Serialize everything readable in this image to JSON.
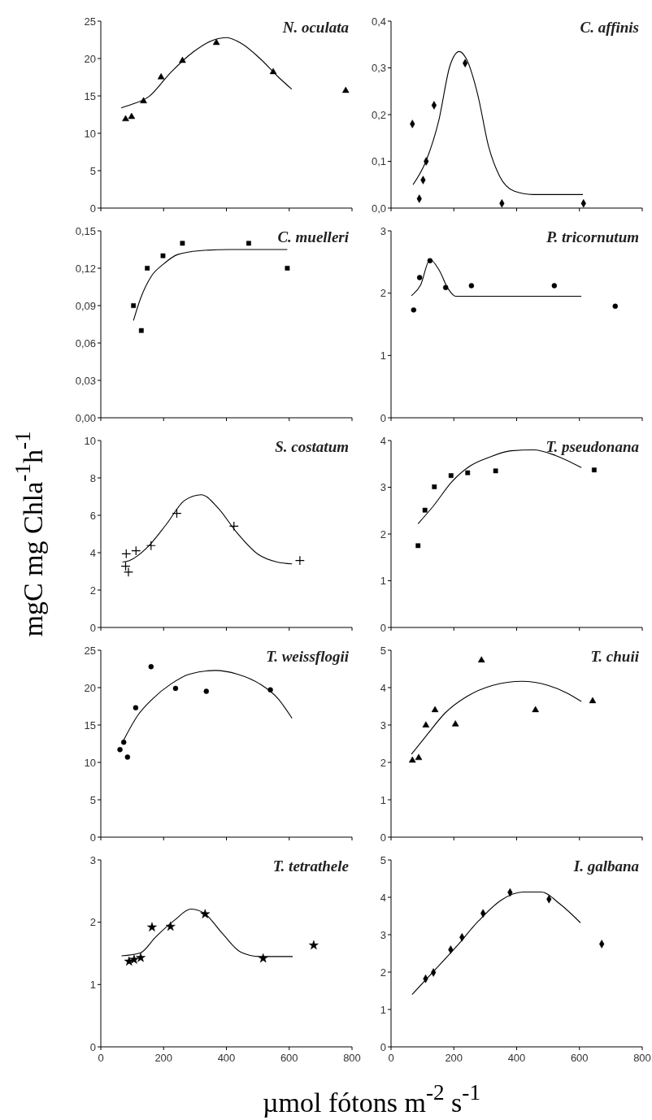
{
  "chart_data": [
    {
      "type": "scatter",
      "title": "N. oculata",
      "xlim": [
        0,
        800
      ],
      "xticks": [
        0,
        200,
        400,
        600,
        800
      ],
      "ylim": [
        0,
        25
      ],
      "yticks": [
        0,
        5,
        10,
        15,
        20,
        25
      ],
      "tick_labels": "y",
      "series": [
        {
          "type": "scatter",
          "marker": "triangle",
          "color": "#000000",
          "x": [
            79,
            98,
            136,
            192,
            260,
            368,
            549,
            780
          ],
          "values": [
            11.9,
            12.2,
            14.3,
            17.5,
            19.7,
            22.1,
            18.2,
            15.7
          ]
        },
        {
          "type": "line",
          "color": "#000000",
          "x": [
            65,
            94,
            153,
            224,
            295,
            354,
            401,
            448,
            507,
            566,
            608
          ],
          "values": [
            13.4,
            13.8,
            14.9,
            18.2,
            20.9,
            22.4,
            22.8,
            22.0,
            20.0,
            17.5,
            15.9
          ]
        }
      ]
    },
    {
      "type": "scatter",
      "title": "C. affinis",
      "xlim": [
        0,
        800
      ],
      "xticks": [
        0,
        200,
        400,
        600,
        800
      ],
      "ylim": [
        0,
        0.4
      ],
      "yticks": [
        {
          "value": 0,
          "label": "0,0"
        },
        {
          "value": 0.1,
          "label": "0,1"
        },
        {
          "value": 0.2,
          "label": "0,2"
        },
        {
          "value": 0.3,
          "label": "0,3"
        },
        {
          "value": 0.4,
          "label": "0,4"
        }
      ],
      "tick_labels": "y",
      "series": [
        {
          "type": "scatter",
          "marker": "diamond",
          "color": "#000000",
          "x": [
            68,
            90,
            102,
            112,
            137,
            236,
            353,
            613
          ],
          "values": [
            0.18,
            0.02,
            0.06,
            0.1,
            0.22,
            0.31,
            0.01,
            0.01
          ]
        },
        {
          "type": "line",
          "color": "#000000",
          "x": [
            70,
            111,
            152,
            187,
            217,
            240,
            276,
            311,
            346,
            393,
            452,
            611
          ],
          "values": [
            0.05,
            0.1,
            0.187,
            0.303,
            0.335,
            0.319,
            0.243,
            0.131,
            0.068,
            0.036,
            0.029,
            0.029
          ]
        }
      ]
    },
    {
      "type": "scatter",
      "title": "C. muelleri",
      "xlim": [
        0,
        800
      ],
      "xticks": [
        0,
        200,
        400,
        600,
        800
      ],
      "ylim": [
        0,
        0.15
      ],
      "yticks": [
        {
          "value": 0,
          "label": "0,00"
        },
        {
          "value": 0.03,
          "label": "0,03"
        },
        {
          "value": 0.06,
          "label": "0,06"
        },
        {
          "value": 0.09,
          "label": "0,09"
        },
        {
          "value": 0.12,
          "label": "0,12"
        },
        {
          "value": 0.15,
          "label": "0,15"
        }
      ],
      "tick_labels": "y",
      "series": [
        {
          "type": "scatter",
          "marker": "square",
          "color": "#000000",
          "x": [
            104,
            129,
            148,
            198,
            260,
            471,
            594
          ],
          "values": [
            0.09,
            0.07,
            0.12,
            0.13,
            0.14,
            0.14,
            0.12
          ]
        },
        {
          "type": "line",
          "color": "#000000",
          "x": [
            104,
            127,
            162,
            198,
            245,
            315,
            409,
            594
          ],
          "values": [
            0.078,
            0.096,
            0.114,
            0.123,
            0.131,
            0.134,
            0.135,
            0.135
          ]
        }
      ]
    },
    {
      "type": "scatter",
      "title": "P. tricornutum",
      "xlim": [
        0,
        800
      ],
      "xticks": [
        0,
        200,
        400,
        600,
        800
      ],
      "ylim": [
        0,
        3
      ],
      "yticks": [
        0,
        1,
        2,
        3
      ],
      "tick_labels": "y",
      "series": [
        {
          "type": "scatter",
          "marker": "circle",
          "color": "#000000",
          "x": [
            72,
            91,
            124,
            174,
            256,
            520,
            714
          ],
          "values": [
            1.73,
            2.25,
            2.52,
            2.09,
            2.12,
            2.12,
            1.79
          ]
        },
        {
          "type": "line",
          "color": "#000000",
          "x": [
            65,
            94,
            124,
            153,
            182,
            206,
            606
          ],
          "values": [
            1.96,
            2.13,
            2.54,
            2.37,
            2.07,
            1.95,
            1.95
          ]
        }
      ]
    },
    {
      "type": "scatter",
      "title": "S. costatum",
      "ylabel": "mgC mg Chla$^{-1}$h$^{-1}$",
      "xlim": [
        0,
        800
      ],
      "xticks": [
        0,
        200,
        400,
        600,
        800
      ],
      "ylim": [
        0,
        10
      ],
      "yticks": [
        0,
        2,
        4,
        6,
        8,
        10
      ],
      "tick_labels": "y",
      "series": [
        {
          "type": "scatter",
          "marker": "cross",
          "color": "#000000",
          "x": [
            81,
            79,
            88,
            112,
            160,
            242,
            424,
            634
          ],
          "values": [
            3.94,
            3.28,
            2.96,
            4.1,
            4.38,
            6.1,
            5.42,
            3.58
          ]
        },
        {
          "type": "line",
          "color": "#000000",
          "x": [
            69,
            91,
            149,
            208,
            267,
            320,
            373,
            432,
            502,
            561,
            609
          ],
          "values": [
            3.5,
            3.58,
            4.3,
            5.5,
            6.8,
            7.1,
            6.4,
            5.1,
            3.9,
            3.5,
            3.4
          ]
        }
      ]
    },
    {
      "type": "scatter",
      "title": "T. pseudonana",
      "xlim": [
        0,
        800
      ],
      "xticks": [
        0,
        200,
        400,
        600,
        800
      ],
      "ylim": [
        0,
        4
      ],
      "yticks": [
        0,
        1,
        2,
        3,
        4
      ],
      "tick_labels": "y",
      "series": [
        {
          "type": "scatter",
          "marker": "square",
          "color": "#000000",
          "x": [
            86,
            108,
            138,
            191,
            244,
            333,
            647
          ],
          "values": [
            1.75,
            2.51,
            3.01,
            3.25,
            3.31,
            3.35,
            3.37
          ]
        },
        {
          "type": "line",
          "color": "#000000",
          "x": [
            86,
            135,
            194,
            253,
            312,
            382,
            453,
            524,
            606
          ],
          "values": [
            2.22,
            2.6,
            3.12,
            3.46,
            3.64,
            3.78,
            3.8,
            3.68,
            3.42
          ]
        }
      ]
    },
    {
      "type": "scatter",
      "title": "T. weissflogii",
      "xlim": [
        0,
        800
      ],
      "xticks": [
        0,
        200,
        400,
        600,
        800
      ],
      "ylim": [
        0,
        25
      ],
      "yticks": [
        0,
        5,
        10,
        15,
        20,
        25
      ],
      "tick_labels": "y",
      "series": [
        {
          "type": "scatter",
          "marker": "circle",
          "color": "#000000",
          "x": [
            61,
            73,
            85,
            111,
            160,
            238,
            336,
            540
          ],
          "values": [
            11.7,
            12.7,
            10.7,
            17.3,
            22.8,
            19.9,
            19.5,
            19.7
          ]
        },
        {
          "type": "line",
          "color": "#000000",
          "x": [
            73,
            118,
            165,
            224,
            282,
            365,
            435,
            506,
            565,
            609
          ],
          "values": [
            13.0,
            16.3,
            18.5,
            20.5,
            21.8,
            22.3,
            21.8,
            20.5,
            18.5,
            15.9
          ]
        }
      ]
    },
    {
      "type": "scatter",
      "title": "T. chuii",
      "xlim": [
        0,
        800
      ],
      "xticks": [
        0,
        200,
        400,
        600,
        800
      ],
      "ylim": [
        0,
        5
      ],
      "yticks": [
        0,
        1,
        2,
        3,
        4,
        5
      ],
      "tick_labels": "y",
      "series": [
        {
          "type": "scatter",
          "marker": "triangle",
          "color": "#000000",
          "x": [
            68,
            88,
            111,
            140,
            205,
            288,
            460,
            642
          ],
          "values": [
            2.05,
            2.12,
            2.99,
            3.4,
            3.02,
            4.73,
            3.4,
            3.64
          ]
        },
        {
          "type": "line",
          "color": "#000000",
          "x": [
            65,
            112,
            171,
            241,
            324,
            418,
            500,
            559,
            606
          ],
          "values": [
            2.22,
            2.71,
            3.31,
            3.76,
            4.06,
            4.17,
            4.06,
            3.86,
            3.63
          ]
        }
      ]
    },
    {
      "type": "scatter",
      "title": "T. tetrathele",
      "xlabel": "µmol fótons m$^{-2}$ s$^{-1}$",
      "xlim": [
        0,
        800
      ],
      "xticks": [
        0,
        200,
        400,
        600,
        800
      ],
      "ylim": [
        0,
        3
      ],
      "yticks": [
        0,
        1,
        2,
        3
      ],
      "series": [
        {
          "type": "scatter",
          "marker": "star",
          "color": "#000000",
          "x": [
            90,
            106,
            127,
            163,
            222,
            332,
            517,
            678
          ],
          "values": [
            1.37,
            1.4,
            1.43,
            1.92,
            1.93,
            2.13,
            1.42,
            1.63
          ]
        },
        {
          "type": "line",
          "color": "#000000",
          "x": [
            66,
            127,
            174,
            234,
            287,
            328,
            387,
            446,
            505,
            611
          ],
          "values": [
            1.46,
            1.51,
            1.76,
            2.03,
            2.21,
            2.15,
            1.82,
            1.52,
            1.45,
            1.45
          ]
        }
      ]
    },
    {
      "type": "scatter",
      "title": "I. galbana",
      "xlim": [
        0,
        800
      ],
      "xticks": [
        0,
        200,
        400,
        600,
        800
      ],
      "ylim": [
        0,
        5
      ],
      "yticks": [
        0,
        1,
        2,
        3,
        4,
        5
      ],
      "series": [
        {
          "type": "scatter",
          "marker": "diamond",
          "color": "#000000",
          "x": [
            110,
            135,
            190,
            226,
            293,
            379,
            503,
            671
          ],
          "values": [
            1.82,
            1.99,
            2.6,
            2.93,
            3.57,
            4.13,
            3.95,
            2.75
          ]
        },
        {
          "type": "line",
          "color": "#000000",
          "x": [
            67,
            138,
            208,
            279,
            350,
            420,
            479,
            538,
            603
          ],
          "values": [
            1.4,
            2.04,
            2.68,
            3.37,
            3.92,
            4.14,
            4.14,
            3.82,
            3.32
          ]
        }
      ]
    }
  ]
}
